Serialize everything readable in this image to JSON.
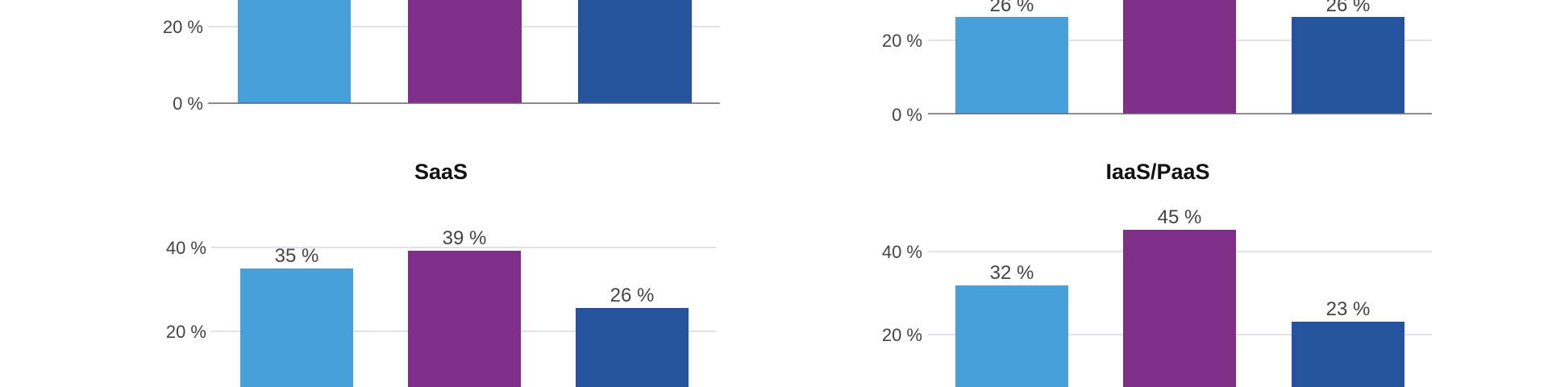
{
  "colors": {
    "series": [
      "#48a0db",
      "#7f2f88",
      "#24559c"
    ],
    "grid": "#d9d9e0",
    "axis": "#666666"
  },
  "chart_data": [
    {
      "type": "bar",
      "title": "",
      "ylim": [
        0,
        45
      ],
      "yticks": [
        0,
        20
      ],
      "tick_labels": [
        "0 %",
        "20 %"
      ],
      "values": [
        null,
        null,
        null
      ],
      "data_labels": [
        "",
        "",
        ""
      ],
      "grid": true
    },
    {
      "type": "bar",
      "title": "",
      "ylim": [
        0,
        45
      ],
      "yticks": [
        0,
        20
      ],
      "tick_labels": [
        "0 %",
        "20 %"
      ],
      "values": [
        26,
        null,
        26
      ],
      "data_labels": [
        "26 %",
        "",
        "26 %"
      ],
      "grid": true
    },
    {
      "type": "bar",
      "title": "SaaS",
      "ylim": [
        0,
        45
      ],
      "yticks": [
        20,
        40
      ],
      "tick_labels": [
        "20 %",
        "40 %"
      ],
      "values": [
        35,
        39,
        26
      ],
      "data_labels": [
        "35 %",
        "39 %",
        "26 %"
      ],
      "grid": true
    },
    {
      "type": "bar",
      "title": "IaaS/PaaS",
      "ylim": [
        0,
        45
      ],
      "yticks": [
        20,
        40
      ],
      "tick_labels": [
        "20 %",
        "40 %"
      ],
      "values": [
        32,
        45,
        23
      ],
      "data_labels": [
        "32 %",
        "45 %",
        "23 %"
      ],
      "grid": true
    }
  ]
}
